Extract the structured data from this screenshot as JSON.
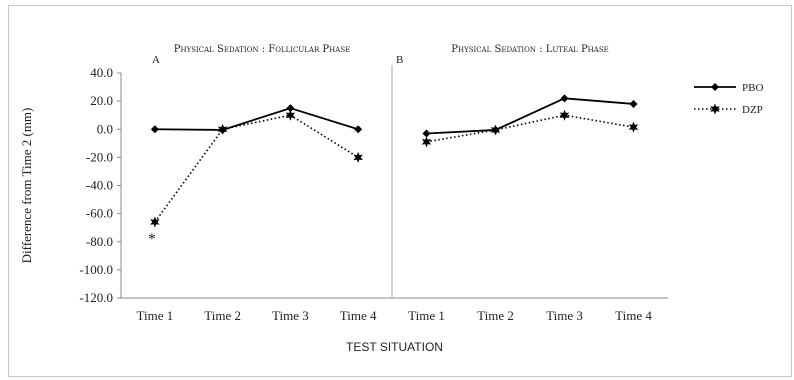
{
  "chart_data": {
    "type": "line",
    "ylabel": "Difference from Time 2 (mm)",
    "xlabel": "TEST SITUATION",
    "ylim": [
      -120,
      40
    ],
    "yticks": [
      "40.0",
      "20.0",
      "0.0",
      "-20.0",
      "-40.0",
      "-60.0",
      "-80.0",
      "-100.0",
      "-120.0"
    ],
    "ytick_values": [
      40,
      20,
      0,
      -20,
      -40,
      -60,
      -80,
      -100,
      -120
    ],
    "grid": false,
    "legend": {
      "placement": "right",
      "entries": [
        {
          "name": "PBO",
          "style": "solid",
          "marker": "diamond"
        },
        {
          "name": "DZP",
          "style": "dotted",
          "marker": "star"
        }
      ]
    },
    "panels": [
      {
        "letter": "A",
        "title": "Physical Sedation : Follicular Phase",
        "categories": [
          "Time 1",
          "Time 2",
          "Time 3",
          "Time 4"
        ],
        "series": [
          {
            "name": "PBO",
            "values": [
              0,
              -0.5,
              15,
              0
            ]
          },
          {
            "name": "DZP",
            "values": [
              -66,
              0,
              10,
              -20
            ]
          }
        ],
        "annotation": {
          "text": "*",
          "category": "Time 1",
          "value": -76
        }
      },
      {
        "letter": "B",
        "title": "Physical Sedation : Luteal Phase",
        "categories": [
          "Time 1",
          "Time 2",
          "Time 3",
          "Time 4"
        ],
        "series": [
          {
            "name": "PBO",
            "values": [
              -3,
              -0.5,
              22,
              18
            ]
          },
          {
            "name": "DZP",
            "values": [
              -9,
              -0.5,
              10,
              1.5
            ]
          }
        ]
      }
    ]
  },
  "colors": {
    "line": "#000000",
    "axis": "#888888",
    "divider": "#aaaaaa",
    "frame": "#c8c8c8"
  }
}
